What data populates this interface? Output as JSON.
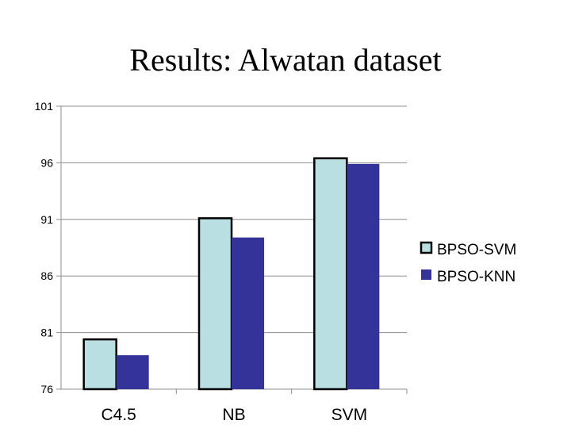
{
  "chart_data": {
    "type": "bar",
    "title": "Results:  Alwatan dataset",
    "categories": [
      "C4.5",
      "NB",
      "SVM"
    ],
    "series": [
      {
        "name": "BPSO-SVM",
        "values": [
          80.4,
          91.1,
          96.4
        ],
        "color": "#b9dfe3"
      },
      {
        "name": "BPSO-KNN",
        "values": [
          79.0,
          89.4,
          95.9
        ],
        "color": "#333399"
      }
    ],
    "ylim": [
      76,
      101
    ],
    "yticks": [
      76,
      81,
      86,
      91,
      96,
      101
    ],
    "grid": true,
    "legend": "right"
  }
}
